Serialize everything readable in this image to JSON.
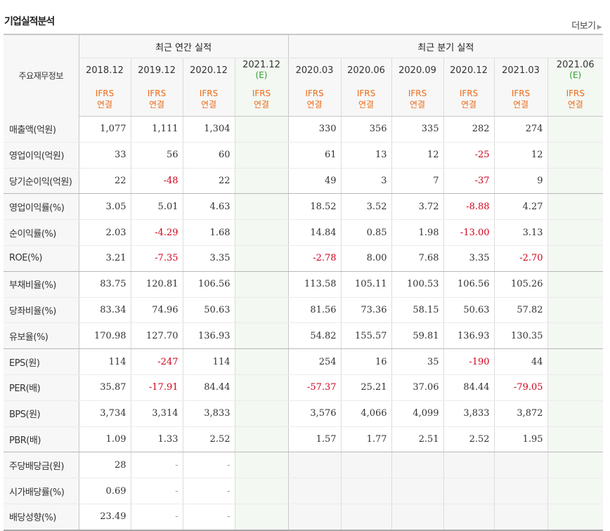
{
  "section": {
    "title": "기업실적분석",
    "more_label": "더보기",
    "more_arrow": "▶"
  },
  "table": {
    "corner_label": "주요재무정보",
    "group_labels": {
      "annual": "최근 연간 실적",
      "quarterly": "최근 분기 실적"
    },
    "periods": [
      {
        "date": "2018.12",
        "est": "",
        "ifrs": "IFRS",
        "basis": "연결"
      },
      {
        "date": "2019.12",
        "est": "",
        "ifrs": "IFRS",
        "basis": "연결"
      },
      {
        "date": "2020.12",
        "est": "",
        "ifrs": "IFRS",
        "basis": "연결"
      },
      {
        "date": "2021.12",
        "est": "(E)",
        "ifrs": "IFRS",
        "basis": "연결"
      },
      {
        "date": "2020.03",
        "est": "",
        "ifrs": "IFRS",
        "basis": "연결"
      },
      {
        "date": "2020.06",
        "est": "",
        "ifrs": "IFRS",
        "basis": "연결"
      },
      {
        "date": "2020.09",
        "est": "",
        "ifrs": "IFRS",
        "basis": "연결"
      },
      {
        "date": "2020.12",
        "est": "",
        "ifrs": "IFRS",
        "basis": "연결"
      },
      {
        "date": "2021.03",
        "est": "",
        "ifrs": "IFRS",
        "basis": "연결"
      },
      {
        "date": "2021.06",
        "est": "(E)",
        "ifrs": "IFRS",
        "basis": "연결"
      }
    ],
    "rows": [
      {
        "label": "매출액(억원)",
        "values": [
          "1,077",
          "1,111",
          "1,304",
          "",
          "330",
          "356",
          "335",
          "282",
          "274",
          ""
        ]
      },
      {
        "label": "영업이익(억원)",
        "values": [
          "33",
          "56",
          "60",
          "",
          "61",
          "13",
          "12",
          "-25",
          "12",
          ""
        ]
      },
      {
        "label": "당기순이익(억원)",
        "values": [
          "22",
          "-48",
          "22",
          "",
          "49",
          "3",
          "7",
          "-37",
          "9",
          ""
        ]
      },
      {
        "label": "영업이익률(%)",
        "values": [
          "3.05",
          "5.01",
          "4.63",
          "",
          "18.52",
          "3.52",
          "3.72",
          "-8.88",
          "4.27",
          ""
        ]
      },
      {
        "label": "순이익률(%)",
        "values": [
          "2.03",
          "-4.29",
          "1.68",
          "",
          "14.84",
          "0.85",
          "1.98",
          "-13.00",
          "3.13",
          ""
        ]
      },
      {
        "label": "ROE(%)",
        "values": [
          "3.21",
          "-7.35",
          "3.35",
          "",
          "-2.78",
          "8.00",
          "7.68",
          "3.35",
          "-2.70",
          ""
        ]
      },
      {
        "label": "부채비율(%)",
        "values": [
          "83.75",
          "120.81",
          "106.56",
          "",
          "113.58",
          "105.11",
          "100.53",
          "106.56",
          "105.26",
          ""
        ]
      },
      {
        "label": "당좌비율(%)",
        "values": [
          "83.34",
          "74.96",
          "50.63",
          "",
          "81.56",
          "73.36",
          "58.15",
          "50.63",
          "57.82",
          ""
        ]
      },
      {
        "label": "유보율(%)",
        "values": [
          "170.98",
          "127.70",
          "136.93",
          "",
          "54.82",
          "155.57",
          "59.81",
          "136.93",
          "130.35",
          ""
        ]
      },
      {
        "label": "EPS(원)",
        "values": [
          "114",
          "-247",
          "114",
          "",
          "254",
          "16",
          "35",
          "-190",
          "44",
          ""
        ]
      },
      {
        "label": "PER(배)",
        "values": [
          "35.87",
          "-17.91",
          "84.44",
          "",
          "-57.37",
          "25.21",
          "37.06",
          "84.44",
          "-79.05",
          ""
        ]
      },
      {
        "label": "BPS(원)",
        "values": [
          "3,734",
          "3,314",
          "3,833",
          "",
          "3,576",
          "4,066",
          "4,099",
          "3,833",
          "3,872",
          ""
        ]
      },
      {
        "label": "PBR(배)",
        "values": [
          "1.09",
          "1.33",
          "2.52",
          "",
          "1.57",
          "1.77",
          "2.51",
          "2.52",
          "1.95",
          ""
        ]
      },
      {
        "label": "주당배당금(원)",
        "values": [
          "28",
          "-",
          "-",
          "",
          "",
          "",
          "",
          "",
          "",
          ""
        ]
      },
      {
        "label": "시가배당률(%)",
        "values": [
          "0.69",
          "-",
          "-",
          "",
          "",
          "",
          "",
          "",
          "",
          ""
        ]
      },
      {
        "label": "배당성향(%)",
        "values": [
          "23.49",
          "-",
          "-",
          "",
          "",
          "",
          "",
          "",
          "",
          ""
        ]
      }
    ],
    "colors": {
      "negative": "#d0021b",
      "ifrs": "#ee6b18",
      "estimate": "#2f9a2f"
    }
  }
}
